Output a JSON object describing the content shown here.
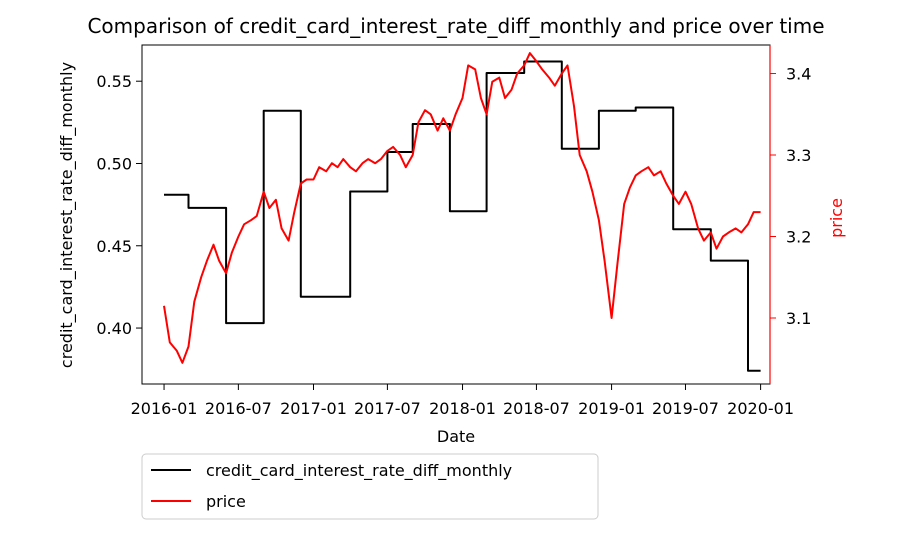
{
  "chart_data": {
    "type": "line",
    "title": "Comparison of credit_card_interest_rate_diff_monthly and price over time",
    "xlabel": "Date",
    "ylabel_left": "credit_card_interest_rate_diff_monthly",
    "ylabel_right": "price",
    "x_ticks": [
      "2016-01",
      "2016-07",
      "2017-01",
      "2017-07",
      "2018-01",
      "2018-07",
      "2019-01",
      "2019-07",
      "2020-01"
    ],
    "y_left_ticks": [
      "0.40",
      "0.45",
      "0.50",
      "0.55"
    ],
    "y_right_ticks": [
      "3.1",
      "3.2",
      "3.3",
      "3.4"
    ],
    "x_range": [
      "2015-11-08",
      "2020-01-24"
    ],
    "y_left_range": [
      0.366,
      0.572
    ],
    "y_right_range": [
      3.019,
      3.435
    ],
    "grid": false,
    "legend_position": "below plot, left",
    "colors": {
      "left_axis": "#000000",
      "right_axis": "#ff0000"
    },
    "series": [
      {
        "name": "credit_card_interest_rate_diff_monthly",
        "axis": "left",
        "color": "#000000",
        "step": true,
        "points": [
          [
            "2016-01-01",
            0.481
          ],
          [
            "2016-02-01",
            0.481
          ],
          [
            "2016-03-01",
            0.473
          ],
          [
            "2016-04-01",
            0.473
          ],
          [
            "2016-05-01",
            0.473
          ],
          [
            "2016-06-01",
            0.403
          ],
          [
            "2016-07-01",
            0.403
          ],
          [
            "2016-08-01",
            0.403
          ],
          [
            "2016-09-01",
            0.532
          ],
          [
            "2016-10-01",
            0.532
          ],
          [
            "2016-11-01",
            0.532
          ],
          [
            "2016-12-01",
            0.419
          ],
          [
            "2017-01-01",
            0.419
          ],
          [
            "2017-02-01",
            0.419
          ],
          [
            "2017-03-01",
            0.419
          ],
          [
            "2017-04-01",
            0.483
          ],
          [
            "2017-05-01",
            0.483
          ],
          [
            "2017-06-01",
            0.483
          ],
          [
            "2017-07-01",
            0.507
          ],
          [
            "2017-08-01",
            0.507
          ],
          [
            "2017-09-01",
            0.524
          ],
          [
            "2017-10-01",
            0.524
          ],
          [
            "2017-11-01",
            0.524
          ],
          [
            "2017-12-01",
            0.471
          ],
          [
            "2018-01-01",
            0.471
          ],
          [
            "2018-02-01",
            0.471
          ],
          [
            "2018-03-01",
            0.555
          ],
          [
            "2018-04-01",
            0.555
          ],
          [
            "2018-05-01",
            0.555
          ],
          [
            "2018-06-01",
            0.562
          ],
          [
            "2018-07-01",
            0.562
          ],
          [
            "2018-08-01",
            0.562
          ],
          [
            "2018-09-01",
            0.509
          ],
          [
            "2018-10-01",
            0.509
          ],
          [
            "2018-11-01",
            0.509
          ],
          [
            "2018-12-01",
            0.532
          ],
          [
            "2019-01-01",
            0.532
          ],
          [
            "2019-02-01",
            0.532
          ],
          [
            "2019-03-01",
            0.534
          ],
          [
            "2019-04-01",
            0.534
          ],
          [
            "2019-05-01",
            0.534
          ],
          [
            "2019-06-01",
            0.46
          ],
          [
            "2019-07-01",
            0.46
          ],
          [
            "2019-08-01",
            0.46
          ],
          [
            "2019-09-01",
            0.441
          ],
          [
            "2019-10-01",
            0.441
          ],
          [
            "2019-11-01",
            0.441
          ],
          [
            "2019-12-01",
            0.374
          ],
          [
            "2020-01-01",
            0.374
          ]
        ]
      },
      {
        "name": "price",
        "axis": "right",
        "color": "#ff0000",
        "points": [
          [
            "2016-01-01",
            3.115
          ],
          [
            "2016-01-15",
            3.07
          ],
          [
            "2016-02-01",
            3.06
          ],
          [
            "2016-02-15",
            3.045
          ],
          [
            "2016-03-01",
            3.065
          ],
          [
            "2016-03-15",
            3.12
          ],
          [
            "2016-04-01",
            3.15
          ],
          [
            "2016-04-15",
            3.17
          ],
          [
            "2016-05-01",
            3.19
          ],
          [
            "2016-05-15",
            3.17
          ],
          [
            "2016-06-01",
            3.155
          ],
          [
            "2016-06-15",
            3.18
          ],
          [
            "2016-07-01",
            3.2
          ],
          [
            "2016-07-15",
            3.215
          ],
          [
            "2016-08-01",
            3.22
          ],
          [
            "2016-08-15",
            3.225
          ],
          [
            "2016-09-01",
            3.255
          ],
          [
            "2016-09-15",
            3.235
          ],
          [
            "2016-10-01",
            3.245
          ],
          [
            "2016-10-15",
            3.21
          ],
          [
            "2016-11-01",
            3.195
          ],
          [
            "2016-11-15",
            3.23
          ],
          [
            "2016-12-01",
            3.265
          ],
          [
            "2016-12-15",
            3.27
          ],
          [
            "2017-01-01",
            3.27
          ],
          [
            "2017-01-15",
            3.285
          ],
          [
            "2017-02-01",
            3.28
          ],
          [
            "2017-02-15",
            3.29
          ],
          [
            "2017-03-01",
            3.285
          ],
          [
            "2017-03-15",
            3.295
          ],
          [
            "2017-04-01",
            3.285
          ],
          [
            "2017-04-15",
            3.28
          ],
          [
            "2017-05-01",
            3.29
          ],
          [
            "2017-05-15",
            3.295
          ],
          [
            "2017-06-01",
            3.29
          ],
          [
            "2017-06-15",
            3.295
          ],
          [
            "2017-07-01",
            3.305
          ],
          [
            "2017-07-15",
            3.31
          ],
          [
            "2017-08-01",
            3.3
          ],
          [
            "2017-08-15",
            3.285
          ],
          [
            "2017-09-01",
            3.3
          ],
          [
            "2017-09-15",
            3.34
          ],
          [
            "2017-10-01",
            3.355
          ],
          [
            "2017-10-15",
            3.35
          ],
          [
            "2017-11-01",
            3.33
          ],
          [
            "2017-11-15",
            3.345
          ],
          [
            "2017-12-01",
            3.33
          ],
          [
            "2017-12-15",
            3.35
          ],
          [
            "2018-01-01",
            3.37
          ],
          [
            "2018-01-15",
            3.41
          ],
          [
            "2018-02-01",
            3.405
          ],
          [
            "2018-02-15",
            3.37
          ],
          [
            "2018-03-01",
            3.35
          ],
          [
            "2018-03-15",
            3.39
          ],
          [
            "2018-04-01",
            3.395
          ],
          [
            "2018-04-15",
            3.37
          ],
          [
            "2018-05-01",
            3.38
          ],
          [
            "2018-05-15",
            3.4
          ],
          [
            "2018-06-01",
            3.41
          ],
          [
            "2018-06-15",
            3.425
          ],
          [
            "2018-07-01",
            3.415
          ],
          [
            "2018-07-15",
            3.405
          ],
          [
            "2018-08-01",
            3.395
          ],
          [
            "2018-08-15",
            3.385
          ],
          [
            "2018-09-01",
            3.4
          ],
          [
            "2018-09-15",
            3.41
          ],
          [
            "2018-10-01",
            3.36
          ],
          [
            "2018-10-15",
            3.3
          ],
          [
            "2018-11-01",
            3.28
          ],
          [
            "2018-11-15",
            3.255
          ],
          [
            "2018-12-01",
            3.22
          ],
          [
            "2018-12-15",
            3.17
          ],
          [
            "2019-01-01",
            3.1
          ],
          [
            "2019-01-15",
            3.165
          ],
          [
            "2019-02-01",
            3.24
          ],
          [
            "2019-02-15",
            3.26
          ],
          [
            "2019-03-01",
            3.275
          ],
          [
            "2019-03-15",
            3.28
          ],
          [
            "2019-04-01",
            3.285
          ],
          [
            "2019-04-15",
            3.275
          ],
          [
            "2019-05-01",
            3.28
          ],
          [
            "2019-05-15",
            3.265
          ],
          [
            "2019-06-01",
            3.25
          ],
          [
            "2019-06-15",
            3.24
          ],
          [
            "2019-07-01",
            3.255
          ],
          [
            "2019-07-15",
            3.24
          ],
          [
            "2019-08-01",
            3.21
          ],
          [
            "2019-08-15",
            3.195
          ],
          [
            "2019-09-01",
            3.205
          ],
          [
            "2019-09-15",
            3.185
          ],
          [
            "2019-10-01",
            3.2
          ],
          [
            "2019-10-15",
            3.205
          ],
          [
            "2019-11-01",
            3.21
          ],
          [
            "2019-11-15",
            3.205
          ],
          [
            "2019-12-01",
            3.215
          ],
          [
            "2019-12-15",
            3.23
          ],
          [
            "2020-01-01",
            3.23
          ]
        ]
      }
    ]
  }
}
